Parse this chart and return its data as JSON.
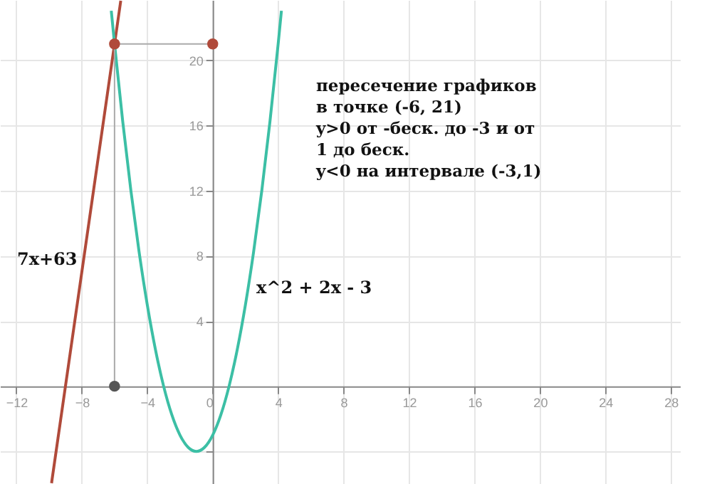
{
  "chart_data": {
    "type": "line",
    "xlim": [
      -13,
      28.6
    ],
    "ylim": [
      -6,
      23.7
    ],
    "xticks": [
      -12,
      -8,
      -4,
      0,
      4,
      8,
      12,
      16,
      20,
      24,
      28
    ],
    "yticks": [
      {
        "value": -4,
        "label": null
      },
      4,
      8,
      12,
      16,
      20
    ],
    "grid": true,
    "legend": false,
    "annotations": [
      "пересечение графиков",
      "в точке (-6, 21)",
      "y>0 от -беск. до -3 и от",
      "1 до беск.",
      "y<0 на интервале (-3,1)"
    ],
    "series": [
      {
        "name": "7x+63",
        "color": "#b04a3a",
        "x": [
          -9.85,
          -5.62
        ],
        "values": [
          -5.95,
          23.66
        ]
      },
      {
        "name": "x^2 + 2x - 3",
        "color": "#3cbfa5",
        "x": [
          -6.2,
          -6,
          -5.5,
          -5,
          -4.5,
          -4,
          -3.5,
          -3,
          -2.5,
          -2,
          -1.5,
          -1,
          -0.5,
          0,
          0.5,
          1,
          1.5,
          2,
          2.5,
          3,
          3.5,
          4,
          4.2
        ],
        "values": [
          23.04,
          21,
          16.25,
          12,
          8.25,
          5,
          2.25,
          0,
          -1.75,
          -3,
          -3.75,
          -4,
          -3.75,
          -3,
          -1.75,
          0,
          2.25,
          5,
          8.25,
          12,
          16.25,
          21,
          23.04
        ]
      },
      {
        "color": "#aaaaaa",
        "x": [
          -6,
          -6,
          0
        ],
        "values": [
          0,
          21,
          21
        ]
      },
      {
        "type": "scatter",
        "color": "#b04a3a",
        "x": [
          -6,
          0
        ],
        "values": [
          21,
          21
        ]
      },
      {
        "type": "scatter",
        "color": "#555555",
        "x": [
          -6
        ],
        "values": [
          0
        ]
      }
    ]
  }
}
